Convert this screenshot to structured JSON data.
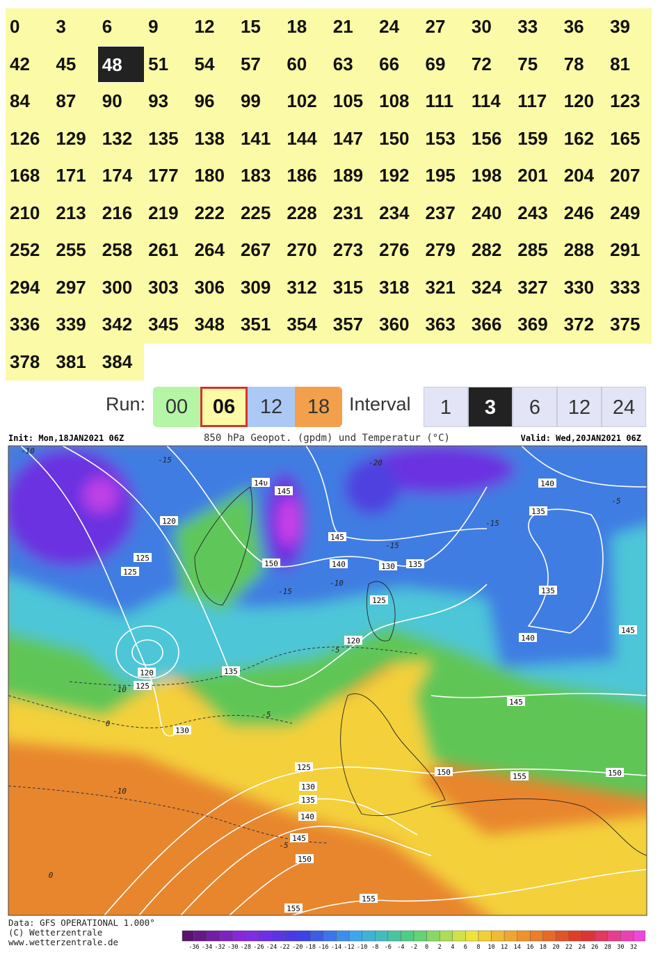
{
  "hours": [
    0,
    3,
    6,
    9,
    12,
    15,
    18,
    21,
    24,
    27,
    30,
    33,
    36,
    39,
    42,
    45,
    48,
    51,
    54,
    57,
    60,
    63,
    66,
    69,
    72,
    75,
    78,
    81,
    84,
    87,
    90,
    93,
    96,
    99,
    102,
    105,
    108,
    111,
    114,
    117,
    120,
    123,
    126,
    129,
    132,
    135,
    138,
    141,
    144,
    147,
    150,
    153,
    156,
    159,
    162,
    165,
    168,
    171,
    174,
    177,
    180,
    183,
    186,
    189,
    192,
    195,
    198,
    201,
    204,
    207,
    210,
    213,
    216,
    219,
    222,
    225,
    228,
    231,
    234,
    237,
    240,
    243,
    246,
    249,
    252,
    255,
    258,
    261,
    264,
    267,
    270,
    273,
    276,
    279,
    282,
    285,
    288,
    291,
    294,
    297,
    300,
    303,
    306,
    309,
    312,
    315,
    318,
    321,
    324,
    327,
    330,
    333,
    336,
    339,
    342,
    345,
    348,
    351,
    354,
    357,
    360,
    363,
    366,
    369,
    372,
    375,
    378,
    381,
    384
  ],
  "selected_hour": 48,
  "run": {
    "label": "Run:",
    "options": [
      "00",
      "06",
      "12",
      "18"
    ],
    "selected": "06"
  },
  "interval": {
    "label": "Interval",
    "options": [
      "1",
      "3",
      "6",
      "12",
      "24"
    ],
    "selected": "3"
  },
  "map": {
    "init": "Init: Mon,18JAN2021 06Z",
    "title": "850 hPa Geopot. (gpdm) und Temperatur (°C)",
    "valid": "Valid: Wed,20JAN2021 06Z",
    "geopotential_labels": [
      "14υ",
      "145",
      "120",
      "125",
      "125",
      "150",
      "145",
      "140",
      "130",
      "135",
      "125",
      "140",
      "135",
      "135",
      "140",
      "145",
      "120",
      "135",
      "120",
      "125",
      "130",
      "145",
      "125",
      "150",
      "155",
      "150",
      "130",
      "135",
      "140",
      "145",
      "150",
      "155",
      "155"
    ],
    "temperature_labels": [
      "-10",
      "-15",
      "-20",
      "-5",
      "-15",
      "-15",
      "-10",
      "-15",
      "-5",
      "-10",
      "-5",
      "0",
      "-10",
      "-5",
      "0"
    ],
    "footer": [
      "Data: GFS OPERATIONAL 1.000°",
      "(C) Wetterzentrale",
      "www.wetterzentrale.de"
    ],
    "colorbar_labels": [
      -36,
      -34,
      -32,
      -30,
      -28,
      -26,
      -24,
      -22,
      -20,
      -18,
      -16,
      -14,
      -12,
      -10,
      -8,
      -6,
      -4,
      -2,
      0,
      2,
      4,
      6,
      8,
      10,
      12,
      14,
      16,
      18,
      20,
      22,
      24,
      26,
      28,
      30,
      32
    ]
  }
}
